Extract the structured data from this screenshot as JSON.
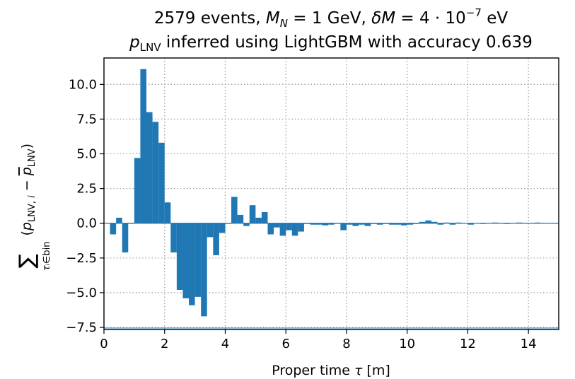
{
  "chart_data": {
    "type": "bar",
    "title_line1": "2579 events, M_N = 1 GeV, δM = 4 · 10^-7 eV",
    "title_line2": "p_LNV inferred using LightGBM with accuracy 0.639",
    "xlabel": "Proper time τ [m]",
    "ylabel": "Σ τ_i∈bin (p_LNV,i − mean p_LNV)",
    "xlim": [
      0,
      15
    ],
    "ylim": [
      -7.65,
      11.9
    ],
    "grid": true,
    "color": "#1f77b4",
    "xticks": [
      0,
      2,
      4,
      6,
      8,
      10,
      12,
      14
    ],
    "xtick_labels": [
      "0",
      "2",
      "4",
      "6",
      "8",
      "10",
      "12",
      "14"
    ],
    "yticks": [
      -7.5,
      -5.0,
      -2.5,
      0.0,
      2.5,
      5.0,
      7.5,
      10.0
    ],
    "ytick_labels": [
      "−7.5",
      "−5.0",
      "−2.5",
      "0.0",
      "2.5",
      "5.0",
      "7.5",
      "10.0"
    ],
    "bin_width": 0.2,
    "bins_start": [
      0.2,
      0.4,
      0.6,
      0.8,
      1.0,
      1.2,
      1.4,
      1.6,
      1.8,
      2.0,
      2.2,
      2.4,
      2.6,
      2.8,
      3.0,
      3.2,
      3.4,
      3.6,
      3.8,
      4.0,
      4.2,
      4.4,
      4.6,
      4.8,
      5.0,
      5.2,
      5.4,
      5.6,
      5.8,
      6.0,
      6.2,
      6.4,
      6.6,
      6.8,
      7.0,
      7.2,
      7.4,
      7.6,
      7.8,
      8.0,
      8.2,
      8.4,
      8.6,
      8.8,
      9.0,
      9.2,
      9.4,
      9.6,
      9.8,
      10.0,
      10.2,
      10.4,
      10.6,
      10.8,
      11.0,
      11.2,
      11.4,
      11.6,
      12.0,
      12.4,
      12.8,
      13.2,
      13.6,
      14.2
    ],
    "values": [
      -0.8,
      0.4,
      -2.1,
      0.0,
      4.7,
      11.1,
      8.0,
      7.3,
      5.8,
      1.5,
      -2.1,
      -4.8,
      -5.4,
      -5.9,
      -5.3,
      -6.7,
      -1.0,
      -2.3,
      -0.7,
      0.0,
      1.9,
      0.6,
      -0.2,
      1.3,
      0.4,
      0.8,
      -0.8,
      -0.3,
      -0.9,
      -0.5,
      -0.9,
      -0.6,
      -0.05,
      -0.1,
      -0.1,
      -0.15,
      -0.1,
      0.0,
      -0.5,
      -0.1,
      -0.2,
      -0.1,
      -0.2,
      -0.05,
      -0.1,
      -0.05,
      -0.1,
      -0.1,
      -0.15,
      -0.1,
      -0.05,
      0.1,
      0.2,
      0.1,
      -0.1,
      0.05,
      -0.1,
      0.05,
      -0.1,
      -0.05,
      0.05,
      -0.05,
      0.05,
      0.05
    ]
  }
}
